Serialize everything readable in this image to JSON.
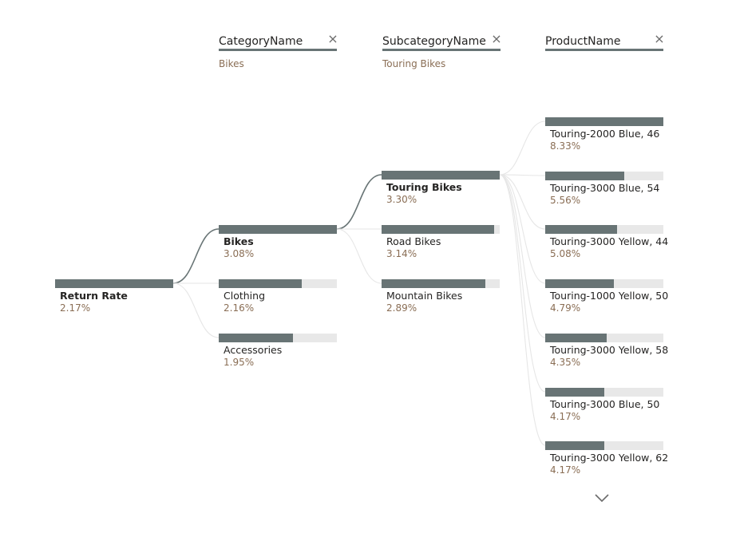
{
  "root": {
    "label": "Return Rate",
    "value": "2.17%",
    "fraction": 1.0
  },
  "columns": [
    {
      "title": "CategoryName",
      "filter": "Bikes",
      "close_icon": "close-icon"
    },
    {
      "title": "SubcategoryName",
      "filter": "Touring Bikes",
      "close_icon": "close-icon"
    },
    {
      "title": "ProductName",
      "filter": "",
      "close_icon": "close-icon"
    }
  ],
  "categories": [
    {
      "label": "Bikes",
      "value": "3.08%",
      "fraction": 1.0,
      "selected": true
    },
    {
      "label": "Clothing",
      "value": "2.16%",
      "fraction": 0.7,
      "selected": false
    },
    {
      "label": "Accessories",
      "value": "1.95%",
      "fraction": 0.63,
      "selected": false
    }
  ],
  "subcategories": [
    {
      "label": "Touring Bikes",
      "value": "3.30%",
      "fraction": 1.0,
      "selected": true
    },
    {
      "label": "Road Bikes",
      "value": "3.14%",
      "fraction": 0.95,
      "selected": false
    },
    {
      "label": "Mountain Bikes",
      "value": "2.89%",
      "fraction": 0.88,
      "selected": false
    }
  ],
  "products": [
    {
      "label": "Touring-2000 Blue, 46",
      "value": "8.33%",
      "fraction": 1.0
    },
    {
      "label": "Touring-3000 Blue, 54",
      "value": "5.56%",
      "fraction": 0.67
    },
    {
      "label": "Touring-3000 Yellow, 44",
      "value": "5.08%",
      "fraction": 0.61
    },
    {
      "label": "Touring-1000 Yellow, 50",
      "value": "4.79%",
      "fraction": 0.58
    },
    {
      "label": "Touring-3000 Yellow, 58",
      "value": "4.35%",
      "fraction": 0.52
    },
    {
      "label": "Touring-3000 Blue, 50",
      "value": "4.17%",
      "fraction": 0.5
    },
    {
      "label": "Touring-3000 Yellow, 62",
      "value": "4.17%",
      "fraction": 0.5
    }
  ],
  "scroll": {
    "icon": "chevron-down-icon"
  },
  "colors": {
    "bar_fill": "#687475",
    "bar_track": "#e8e8e8",
    "connector_active": "#687475",
    "connector_inactive": "#e6e6e6",
    "value_text": "#8a6e55"
  }
}
